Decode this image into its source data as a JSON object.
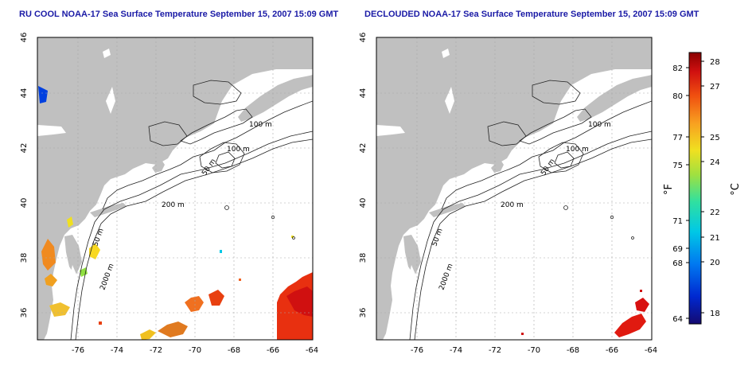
{
  "titles": {
    "left": "RU COOL NOAA-17 Sea Surface Temperature September 15, 2007 15:09 GMT",
    "right": "DECLOUDED NOAA-17 Sea Surface Temperature September 15, 2007 15:09 GMT"
  },
  "axes": {
    "lon_ticks": [
      "-76",
      "-74",
      "-72",
      "-70",
      "-68",
      "-66",
      "-64"
    ],
    "lat_ticks": [
      "46",
      "44",
      "42",
      "40",
      "38",
      "36"
    ]
  },
  "contour_labels": [
    "100 m",
    "100 m",
    "50 m",
    "200 m",
    "50 m",
    "2000 m"
  ],
  "colorbar": {
    "fahrenheit_label": "°F",
    "celsius_label": "°C",
    "fahrenheit_ticks": [
      "82",
      "80",
      "77",
      "75",
      "71",
      "69",
      "68",
      "64"
    ],
    "celsius_ticks": [
      "28",
      "27",
      "25",
      "24",
      "22",
      "21",
      "20",
      "18"
    ],
    "colors": [
      "#140a70",
      "#0028d0",
      "#0078f0",
      "#00c8e6",
      "#30e0a0",
      "#a0e040",
      "#f0e020",
      "#f8a020",
      "#f05010",
      "#d01010",
      "#8a0000"
    ]
  },
  "colors": {
    "land": "#c0c0c0",
    "contour": "#222222",
    "grid": "#a8a8a8"
  }
}
